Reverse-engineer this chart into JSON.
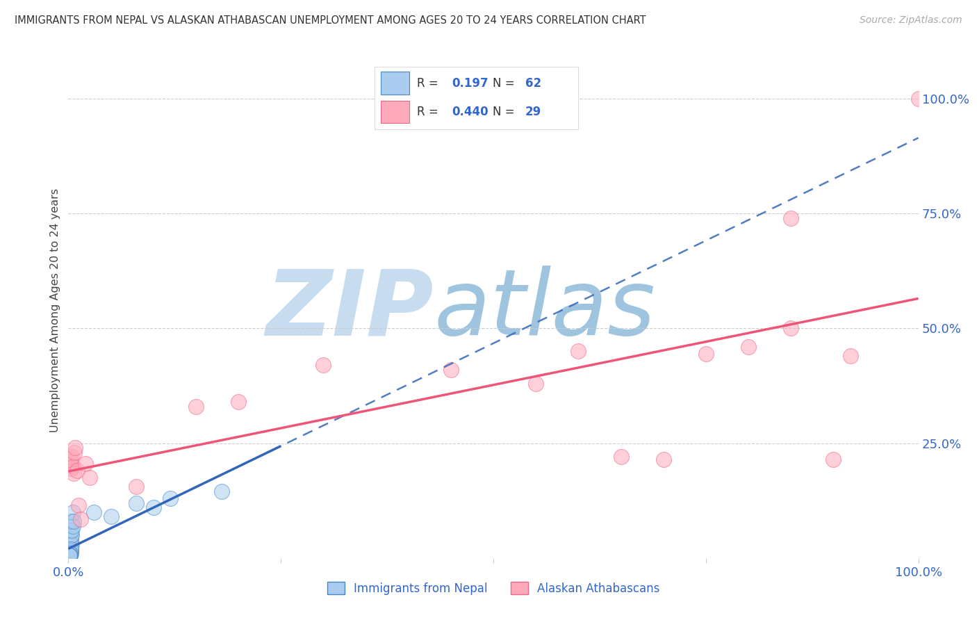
{
  "title": "IMMIGRANTS FROM NEPAL VS ALASKAN ATHABASCAN UNEMPLOYMENT AMONG AGES 20 TO 24 YEARS CORRELATION CHART",
  "source": "Source: ZipAtlas.com",
  "ylabel": "Unemployment Among Ages 20 to 24 years",
  "legend_label1": "Immigrants from Nepal",
  "legend_label2": "Alaskan Athabascans",
  "R1": "0.197",
  "N1": "62",
  "R2": "0.440",
  "N2": "29",
  "color_blue_fill": "#AACCEE",
  "color_blue_edge": "#4488CC",
  "color_pink_fill": "#FFAABB",
  "color_pink_edge": "#EE6688",
  "color_blue_line": "#3366BB",
  "color_pink_line": "#EE5577",
  "color_title": "#333333",
  "color_axis": "#3366CC",
  "color_source": "#AAAAAA",
  "color_watermark_zip": "#C8DCF0",
  "color_watermark_atlas": "#9EC4E0",
  "color_grid": "#CCCCCC",
  "xlim": [
    0.0,
    1.0
  ],
  "ylim": [
    0.0,
    1.08
  ],
  "nepal_x": [
    0.001,
    0.001,
    0.001,
    0.001,
    0.001,
    0.001,
    0.001,
    0.001,
    0.001,
    0.001,
    0.001,
    0.001,
    0.002,
    0.002,
    0.002,
    0.002,
    0.002,
    0.002,
    0.002,
    0.002,
    0.003,
    0.003,
    0.003,
    0.003,
    0.003,
    0.003,
    0.004,
    0.004,
    0.004,
    0.004,
    0.005,
    0.005,
    0.006,
    0.001,
    0.001,
    0.002,
    0.002,
    0.003,
    0.003,
    0.001,
    0.001,
    0.002,
    0.001,
    0.001,
    0.002,
    0.001,
    0.001,
    0.001,
    0.002,
    0.001,
    0.001,
    0.001,
    0.001,
    0.001,
    0.001,
    0.001,
    0.03,
    0.05,
    0.08,
    0.1,
    0.12,
    0.18
  ],
  "nepal_y": [
    0.005,
    0.005,
    0.01,
    0.01,
    0.01,
    0.01,
    0.01,
    0.015,
    0.015,
    0.02,
    0.02,
    0.025,
    0.005,
    0.01,
    0.01,
    0.015,
    0.02,
    0.025,
    0.03,
    0.04,
    0.01,
    0.02,
    0.03,
    0.04,
    0.05,
    0.06,
    0.03,
    0.05,
    0.06,
    0.08,
    0.07,
    0.1,
    0.08,
    0.005,
    0.008,
    0.008,
    0.012,
    0.015,
    0.02,
    0.005,
    0.006,
    0.01,
    0.005,
    0.005,
    0.008,
    0.005,
    0.005,
    0.005,
    0.01,
    0.005,
    0.005,
    0.005,
    0.005,
    0.005,
    0.005,
    0.005,
    0.1,
    0.09,
    0.12,
    0.11,
    0.13,
    0.145
  ],
  "athabascan_x": [
    0.001,
    0.002,
    0.003,
    0.004,
    0.005,
    0.006,
    0.007,
    0.008,
    0.01,
    0.012,
    0.014,
    0.02,
    0.025,
    0.08,
    0.15,
    0.2,
    0.3,
    0.45,
    0.55,
    0.6,
    0.65,
    0.7,
    0.75,
    0.8,
    0.85,
    0.9,
    0.92,
    0.85,
    1.0
  ],
  "athabascan_y": [
    0.21,
    0.215,
    0.195,
    0.22,
    0.2,
    0.185,
    0.23,
    0.24,
    0.19,
    0.115,
    0.085,
    0.205,
    0.175,
    0.155,
    0.33,
    0.34,
    0.42,
    0.41,
    0.38,
    0.45,
    0.22,
    0.215,
    0.445,
    0.46,
    0.5,
    0.215,
    0.44,
    0.74,
    1.0
  ]
}
